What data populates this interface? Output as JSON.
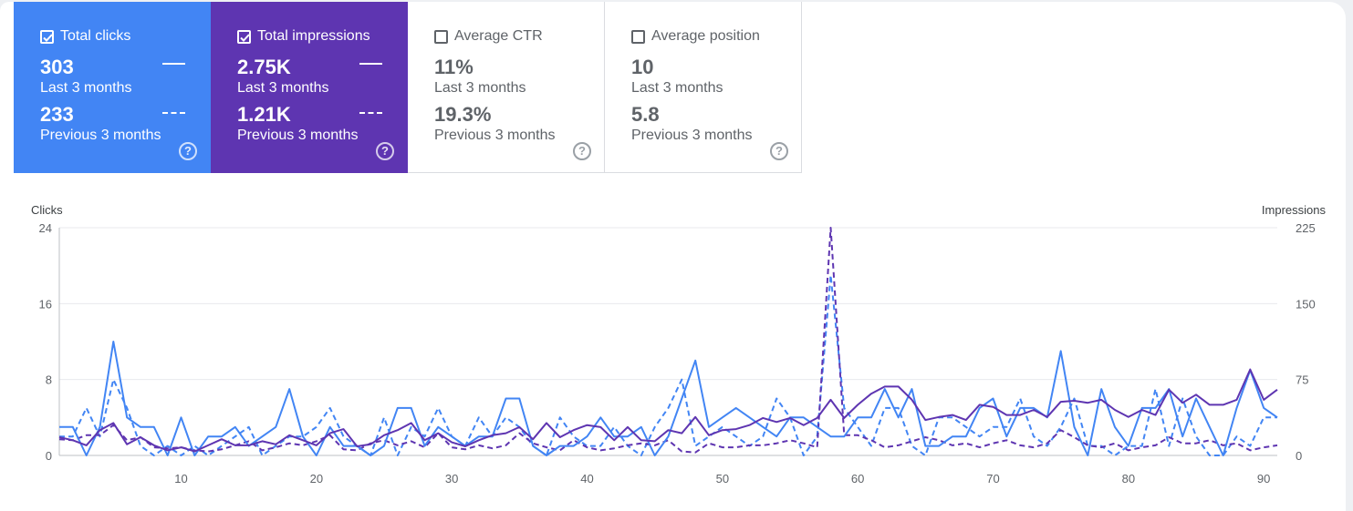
{
  "metrics": [
    {
      "label": "Total clicks",
      "checked": true,
      "current": "303",
      "current_period": "Last 3 months",
      "previous": "233",
      "previous_period": "Previous 3 months",
      "help": "?"
    },
    {
      "label": "Total impressions",
      "checked": true,
      "current": "2.75K",
      "current_period": "Last 3 months",
      "previous": "1.21K",
      "previous_period": "Previous 3 months",
      "help": "?"
    },
    {
      "label": "Average CTR",
      "checked": false,
      "current": "11%",
      "current_period": "Last 3 months",
      "previous": "19.3%",
      "previous_period": "Previous 3 months",
      "help": "?"
    },
    {
      "label": "Average position",
      "checked": false,
      "current": "10",
      "current_period": "Last 3 months",
      "previous": "5.8",
      "previous_period": "Previous 3 months",
      "help": "?"
    }
  ],
  "colors": {
    "clicks": "#4285f4",
    "impressions": "#5e35b1",
    "grid": "#e8eaed",
    "axis": "#bdc1c6"
  },
  "chart_data": {
    "type": "line",
    "left_axis": {
      "label": "Clicks",
      "ticks": [
        "0",
        "8",
        "16",
        "24"
      ],
      "range": [
        0,
        24
      ]
    },
    "right_axis": {
      "label": "Impressions",
      "ticks": [
        "0",
        "75",
        "150",
        "225"
      ],
      "range": [
        0,
        225
      ]
    },
    "x_ticks": [
      "10",
      "20",
      "30",
      "40",
      "50",
      "60",
      "70",
      "80",
      "90"
    ],
    "x_range": [
      1,
      91
    ],
    "series": [
      {
        "name": "Total clicks",
        "period": "Last 3 months",
        "axis": "left",
        "style": "solid",
        "color": "#4285f4",
        "values": [
          3,
          3,
          0,
          3,
          12,
          4,
          3,
          3,
          0,
          4,
          0,
          2,
          2,
          3,
          1,
          2,
          3,
          7,
          2,
          0,
          3,
          1,
          1,
          0,
          1,
          5,
          5,
          1,
          3,
          2,
          1,
          2,
          2,
          6,
          6,
          1,
          0,
          1,
          1,
          2,
          4,
          2,
          2,
          3,
          0,
          2,
          6,
          10,
          3,
          4,
          5,
          4,
          3,
          2,
          4,
          4,
          3,
          2,
          2,
          4,
          4,
          7,
          4,
          7,
          1,
          1,
          2,
          2,
          5,
          6,
          2,
          5,
          5,
          4,
          11,
          3,
          0,
          7,
          3,
          1,
          5,
          5,
          7,
          2,
          6,
          3,
          0,
          5,
          9,
          5,
          4
        ]
      },
      {
        "name": "Total clicks",
        "period": "Previous 3 months",
        "axis": "left",
        "style": "dashed",
        "color": "#4285f4",
        "values": [
          2,
          2,
          5,
          2,
          8,
          5,
          1,
          0,
          1,
          0,
          1,
          0,
          1,
          2,
          3,
          0,
          1,
          2,
          2,
          3,
          5,
          2,
          1,
          0,
          4,
          0,
          3,
          2,
          5,
          2,
          1,
          4,
          2,
          4,
          3,
          1,
          0,
          4,
          2,
          1,
          1,
          3,
          1,
          0,
          3,
          5,
          8,
          1,
          2,
          3,
          2,
          1,
          2,
          6,
          4,
          0,
          2,
          19,
          5,
          3,
          1,
          5,
          5,
          1,
          0,
          4,
          4,
          3,
          2,
          3,
          3,
          6,
          2,
          1,
          3,
          6,
          1,
          1,
          0,
          1,
          1,
          7,
          1,
          6,
          2,
          0,
          0,
          2,
          1,
          4,
          4
        ]
      },
      {
        "name": "Total impressions",
        "period": "Last 3 months",
        "axis": "right",
        "style": "solid",
        "color": "#5e35b1",
        "values": [
          18,
          15,
          10,
          25,
          32,
          11,
          18,
          10,
          5,
          8,
          4,
          10,
          16,
          10,
          10,
          14,
          11,
          20,
          15,
          10,
          22,
          26,
          9,
          11,
          20,
          25,
          32,
          15,
          22,
          13,
          9,
          15,
          20,
          22,
          28,
          16,
          32,
          18,
          25,
          30,
          28,
          15,
          28,
          15,
          14,
          25,
          22,
          38,
          20,
          25,
          26,
          30,
          37,
          33,
          37,
          30,
          37,
          55,
          37,
          50,
          61,
          68,
          68,
          55,
          35,
          38,
          40,
          35,
          50,
          48,
          40,
          40,
          45,
          38,
          53,
          54,
          52,
          55,
          45,
          38,
          45,
          40,
          65,
          52,
          60,
          50,
          50,
          55,
          85,
          55,
          65
        ]
      },
      {
        "name": "Total impressions",
        "period": "Previous 3 months",
        "axis": "right",
        "style": "dashed",
        "color": "#5e35b1",
        "values": [
          16,
          15,
          20,
          20,
          30,
          15,
          18,
          8,
          7,
          8,
          5,
          4,
          6,
          10,
          14,
          5,
          8,
          12,
          10,
          14,
          20,
          6,
          5,
          12,
          15,
          10,
          14,
          8,
          22,
          8,
          6,
          10,
          7,
          10,
          22,
          12,
          8,
          5,
          15,
          8,
          5,
          7,
          10,
          12,
          10,
          15,
          4,
          3,
          12,
          8,
          8,
          10,
          10,
          12,
          15,
          12,
          8,
          225,
          20,
          20,
          15,
          8,
          10,
          14,
          18,
          15,
          10,
          12,
          8,
          12,
          15,
          10,
          8,
          12,
          25,
          18,
          10,
          8,
          12,
          5,
          8,
          10,
          18,
          12,
          12,
          15,
          10,
          12,
          5,
          8,
          10
        ]
      }
    ]
  }
}
